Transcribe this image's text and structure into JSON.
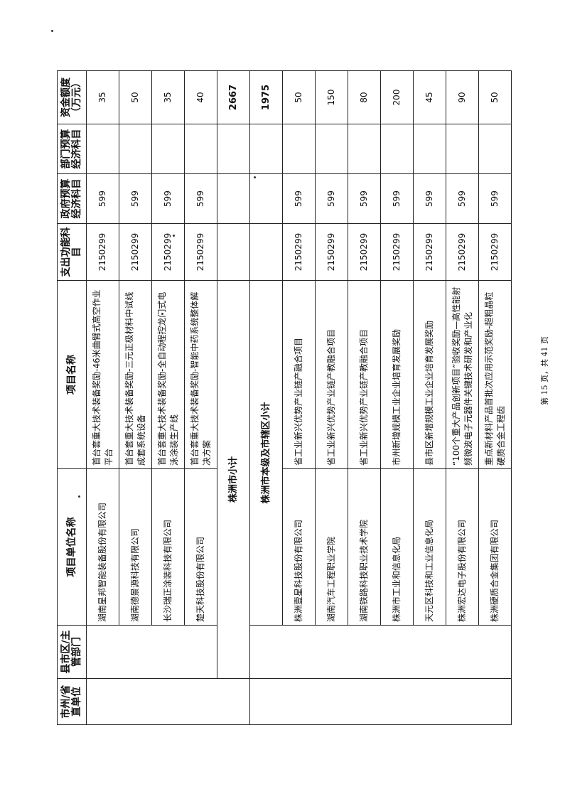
{
  "headers": [
    "市州/省直单位",
    "县市区/主管部门",
    "项目单位名称",
    "项目名称",
    "支出功能科目",
    "政府预算经济科目",
    "部门预算经济科目",
    "资金额度（万元）"
  ],
  "rows_a": [
    {
      "unit": "湖南星邦智能装备股份有限公司",
      "project": "首台套重大技术装备奖励-46米曲臂式高空作业平台",
      "func": "2150299",
      "gov": "599",
      "dept": "",
      "amount": "35"
    },
    {
      "unit": "湖南德景源科技有限公司",
      "project": "首台套重大技术装备奖励-三元正极材料中试线成套系统设备",
      "func": "2150299",
      "gov": "599",
      "dept": "",
      "amount": "50"
    },
    {
      "unit": "长沙瑞正涂装科技有限公司",
      "project": "首台套重大技术装备奖励-全自动程控龙门式电泳涂装生产线",
      "func": "2150299",
      "gov": "599",
      "dept": "",
      "amount": "35"
    },
    {
      "unit": "楚天科技股份有限公司",
      "project": "首台套重大技术装备奖励-智能中药系统整体解决方案",
      "func": "2150299",
      "gov": "599",
      "dept": "",
      "amount": "40"
    }
  ],
  "subtotal1": {
    "label": "株洲市小计",
    "amount": "2667"
  },
  "subtotal2": {
    "label": "株洲市本级及市辖区小计",
    "amount": "1975"
  },
  "rows_b": [
    {
      "unit": "株洲壹星科技股份有限公司",
      "project": "省工业新兴优势产业链产融合项目",
      "func": "2150299",
      "gov": "599",
      "dept": "",
      "amount": "50"
    },
    {
      "unit": "湖南汽车工程职业学院",
      "project": "省工业新兴优势产业链产教融合项目",
      "func": "2150299",
      "gov": "599",
      "dept": "",
      "amount": "150"
    },
    {
      "unit": "湖南铁路科技职业技术学院",
      "project": "省工业新兴优势产业链产教融合项目",
      "func": "2150299",
      "gov": "599",
      "dept": "",
      "amount": "80"
    },
    {
      "unit": "株洲市工业和信息化局",
      "project": "市州新增规模工业企业培育发展奖励",
      "func": "2150299",
      "gov": "599",
      "dept": "",
      "amount": "200"
    },
    {
      "unit": "天元区科技和工业信息化局",
      "project": "县市区新增规模工业企业培育发展奖励",
      "func": "2150299",
      "gov": "599",
      "dept": "",
      "amount": "45"
    },
    {
      "unit": "株洲宏达电子股份有限公司",
      "project": "“100个重大产品创新项目”验收奖励—高性能射频微波电子元器件关键技术研发和产业化",
      "func": "2150299",
      "gov": "599",
      "dept": "",
      "amount": "90"
    },
    {
      "unit": "株洲硬质合金集团有限公司",
      "project": "重点新材料产品首批次应用示范奖励-超粗晶粒硬质合金工程齿",
      "func": "2150299",
      "gov": "599",
      "dept": "",
      "amount": "50"
    }
  ],
  "footer": "第 15 页，共 41 页"
}
